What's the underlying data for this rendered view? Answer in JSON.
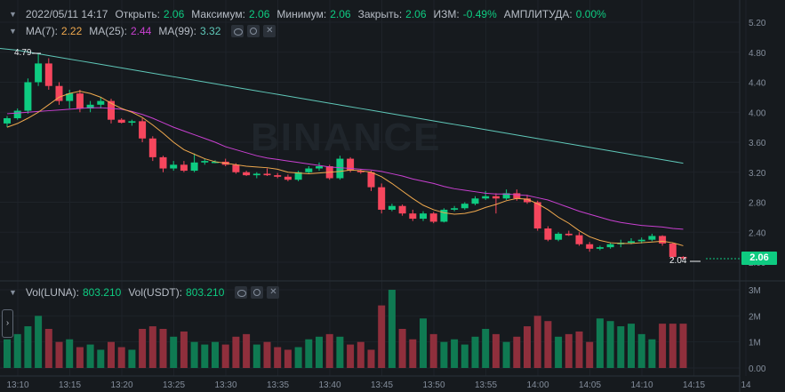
{
  "ohlc_legend": {
    "datetime": "2022/05/11 14:17",
    "open_label": "Открыть:",
    "open": "2.06",
    "high_label": "Максимум:",
    "high": "2.06",
    "low_label": "Минимум:",
    "low": "2.06",
    "close_label": "Закрыть:",
    "close": "2.06",
    "change_label": "ИЗМ:",
    "change": "-0.49%",
    "amplitude_label": "АМПЛИТУДА:",
    "amplitude": "0.00%"
  },
  "ma_legend": {
    "ma7_label": "MA(7):",
    "ma7": "2.22",
    "ma25_label": "MA(25):",
    "ma25": "2.44",
    "ma99_label": "MA(99):",
    "ma99": "3.32"
  },
  "vol_legend": {
    "luna_label": "Vol(LUNA):",
    "luna": "803.210",
    "usdt_label": "Vol(USDT):",
    "usdt": "803.210"
  },
  "watermark": "BINANCE",
  "current_price": "2.06",
  "high_marker": "4.79",
  "low_marker": "2.04",
  "icons": {
    "chevron": "chevron-down-icon",
    "eye": "eye-icon",
    "settings": "gear-icon",
    "close": "close-icon",
    "side_toggle": "chevron-right-icon"
  },
  "colors": {
    "up": "#0ecb81",
    "down": "#f6465d",
    "ma7": "#f0a94e",
    "ma25": "#c840d0",
    "ma99": "#5fc7b8",
    "background": "#161a1e"
  },
  "chart_data": {
    "type": "candlestick",
    "price_axis": {
      "ticks": [
        "5.20",
        "4.80",
        "4.40",
        "4.00",
        "3.60",
        "3.20",
        "2.80",
        "2.40",
        "2.00"
      ],
      "range": [
        1.9,
        5.35
      ]
    },
    "volume_axis": {
      "ticks": [
        "3M",
        "2M",
        "1M",
        "0.00"
      ],
      "range": [
        0,
        3000000
      ]
    },
    "time_axis": [
      "13:10",
      "13:15",
      "13:20",
      "13:25",
      "13:30",
      "13:35",
      "13:40",
      "13:45",
      "13:50",
      "13:55",
      "14:00",
      "14:05",
      "14:10",
      "14:15",
      "14"
    ],
    "candles": [
      [
        3.85,
        3.95,
        3.8,
        3.92
      ],
      [
        3.92,
        4.05,
        3.9,
        4.02
      ],
      [
        4.02,
        4.45,
        3.98,
        4.4
      ],
      [
        4.4,
        4.79,
        4.35,
        4.65
      ],
      [
        4.65,
        4.72,
        4.3,
        4.35
      ],
      [
        4.35,
        4.4,
        4.1,
        4.15
      ],
      [
        4.15,
        4.3,
        4.05,
        4.25
      ],
      [
        4.25,
        4.3,
        4.0,
        4.05
      ],
      [
        4.05,
        4.15,
        4.0,
        4.1
      ],
      [
        4.1,
        4.2,
        4.05,
        4.15
      ],
      [
        4.15,
        4.18,
        3.85,
        3.9
      ],
      [
        3.9,
        3.92,
        3.85,
        3.86
      ],
      [
        3.86,
        3.9,
        3.82,
        3.88
      ],
      [
        3.88,
        3.92,
        3.6,
        3.65
      ],
      [
        3.65,
        3.68,
        3.35,
        3.4
      ],
      [
        3.4,
        3.42,
        3.2,
        3.25
      ],
      [
        3.25,
        3.35,
        3.22,
        3.3
      ],
      [
        3.3,
        3.35,
        3.2,
        3.22
      ],
      [
        3.22,
        3.45,
        3.2,
        3.33
      ],
      [
        3.33,
        3.38,
        3.3,
        3.35
      ],
      [
        3.33,
        3.36,
        3.32,
        3.34
      ],
      [
        3.34,
        3.38,
        3.28,
        3.3
      ],
      [
        3.3,
        3.32,
        3.18,
        3.2
      ],
      [
        3.2,
        3.22,
        3.15,
        3.16
      ],
      [
        3.16,
        3.2,
        3.12,
        3.18
      ],
      [
        3.18,
        3.25,
        3.15,
        3.16
      ],
      [
        3.16,
        3.19,
        3.12,
        3.14
      ],
      [
        3.14,
        3.17,
        3.08,
        3.1
      ],
      [
        3.1,
        3.22,
        3.08,
        3.2
      ],
      [
        3.2,
        3.28,
        3.18,
        3.25
      ],
      [
        3.25,
        3.33,
        3.22,
        3.28
      ],
      [
        3.28,
        3.3,
        3.1,
        3.12
      ],
      [
        3.12,
        3.42,
        3.1,
        3.38
      ],
      [
        3.38,
        3.4,
        3.2,
        3.22
      ],
      [
        3.22,
        3.24,
        3.18,
        3.2
      ],
      [
        3.2,
        3.22,
        2.95,
        3.0
      ],
      [
        3.0,
        3.05,
        2.65,
        2.7
      ],
      [
        2.7,
        2.78,
        2.68,
        2.75
      ],
      [
        2.75,
        2.77,
        2.62,
        2.65
      ],
      [
        2.65,
        2.7,
        2.55,
        2.58
      ],
      [
        2.58,
        2.68,
        2.55,
        2.65
      ],
      [
        2.65,
        2.67,
        2.52,
        2.54
      ],
      [
        2.54,
        2.72,
        2.53,
        2.7
      ],
      [
        2.7,
        2.75,
        2.68,
        2.72
      ],
      [
        2.72,
        2.8,
        2.7,
        2.78
      ],
      [
        2.78,
        2.88,
        2.76,
        2.85
      ],
      [
        2.85,
        2.95,
        2.83,
        2.88
      ],
      [
        2.88,
        2.92,
        2.65,
        2.85
      ],
      [
        2.85,
        2.97,
        2.83,
        2.92
      ],
      [
        2.92,
        2.97,
        2.82,
        2.85
      ],
      [
        2.85,
        2.9,
        2.78,
        2.8
      ],
      [
        2.8,
        2.82,
        2.42,
        2.45
      ],
      [
        2.45,
        2.48,
        2.28,
        2.3
      ],
      [
        2.3,
        2.4,
        2.28,
        2.38
      ],
      [
        2.38,
        2.42,
        2.35,
        2.36
      ],
      [
        2.36,
        2.4,
        2.22,
        2.24
      ],
      [
        2.24,
        2.27,
        2.14,
        2.18
      ],
      [
        2.18,
        2.22,
        2.16,
        2.2
      ],
      [
        2.2,
        2.26,
        2.18,
        2.24
      ],
      [
        2.24,
        2.3,
        2.2,
        2.26
      ],
      [
        2.26,
        2.32,
        2.24,
        2.28
      ],
      [
        2.28,
        2.33,
        2.25,
        2.3
      ],
      [
        2.3,
        2.38,
        2.28,
        2.35
      ],
      [
        2.35,
        2.36,
        2.22,
        2.25
      ],
      [
        2.25,
        2.26,
        2.04,
        2.07
      ],
      [
        2.07,
        2.08,
        2.04,
        2.06
      ]
    ],
    "volumes": [
      1.1,
      1.3,
      1.6,
      2.0,
      1.5,
      1.0,
      1.1,
      0.8,
      0.9,
      0.7,
      1.0,
      0.8,
      0.7,
      1.5,
      1.6,
      1.5,
      1.2,
      1.4,
      1.0,
      0.9,
      1.0,
      0.9,
      1.2,
      1.3,
      0.9,
      1.0,
      0.8,
      0.7,
      0.8,
      1.1,
      1.2,
      1.3,
      1.2,
      0.9,
      1.0,
      0.7,
      2.4,
      3.0,
      1.5,
      1.1,
      1.9,
      1.3,
      1.0,
      1.1,
      0.9,
      1.2,
      1.5,
      1.3,
      1.0,
      1.2,
      1.6,
      2.0,
      1.8,
      1.2,
      1.3,
      1.4,
      1.0,
      1.9,
      1.8,
      1.6,
      1.7,
      1.3,
      1.1,
      1.7,
      1.7,
      1.7
    ],
    "volume_unit": "M",
    "ma7": [
      3.8,
      3.85,
      3.92,
      4.0,
      4.1,
      4.2,
      4.25,
      4.28,
      4.25,
      4.2,
      4.12,
      4.05,
      4.0,
      3.93,
      3.83,
      3.72,
      3.6,
      3.5,
      3.44,
      3.38,
      3.34,
      3.32,
      3.3,
      3.28,
      3.27,
      3.26,
      3.24,
      3.2,
      3.19,
      3.18,
      3.19,
      3.2,
      3.21,
      3.23,
      3.22,
      3.2,
      3.14,
      3.05,
      2.95,
      2.85,
      2.76,
      2.7,
      2.66,
      2.64,
      2.65,
      2.68,
      2.73,
      2.77,
      2.82,
      2.85,
      2.84,
      2.78,
      2.7,
      2.6,
      2.52,
      2.42,
      2.34,
      2.29,
      2.26,
      2.25,
      2.25,
      2.26,
      2.27,
      2.28,
      2.26,
      2.22
    ],
    "ma25": [
      3.98,
      3.99,
      4.0,
      4.01,
      4.02,
      4.03,
      4.04,
      4.05,
      4.06,
      4.06,
      4.05,
      4.04,
      4.01,
      3.97,
      3.92,
      3.86,
      3.8,
      3.75,
      3.7,
      3.65,
      3.6,
      3.54,
      3.5,
      3.46,
      3.42,
      3.39,
      3.37,
      3.35,
      3.33,
      3.31,
      3.29,
      3.27,
      3.26,
      3.25,
      3.24,
      3.23,
      3.21,
      3.18,
      3.15,
      3.11,
      3.08,
      3.05,
      3.01,
      2.98,
      2.96,
      2.94,
      2.92,
      2.91,
      2.91,
      2.9,
      2.89,
      2.86,
      2.83,
      2.78,
      2.73,
      2.68,
      2.64,
      2.6,
      2.56,
      2.53,
      2.51,
      2.49,
      2.48,
      2.47,
      2.45,
      2.44
    ]
  }
}
